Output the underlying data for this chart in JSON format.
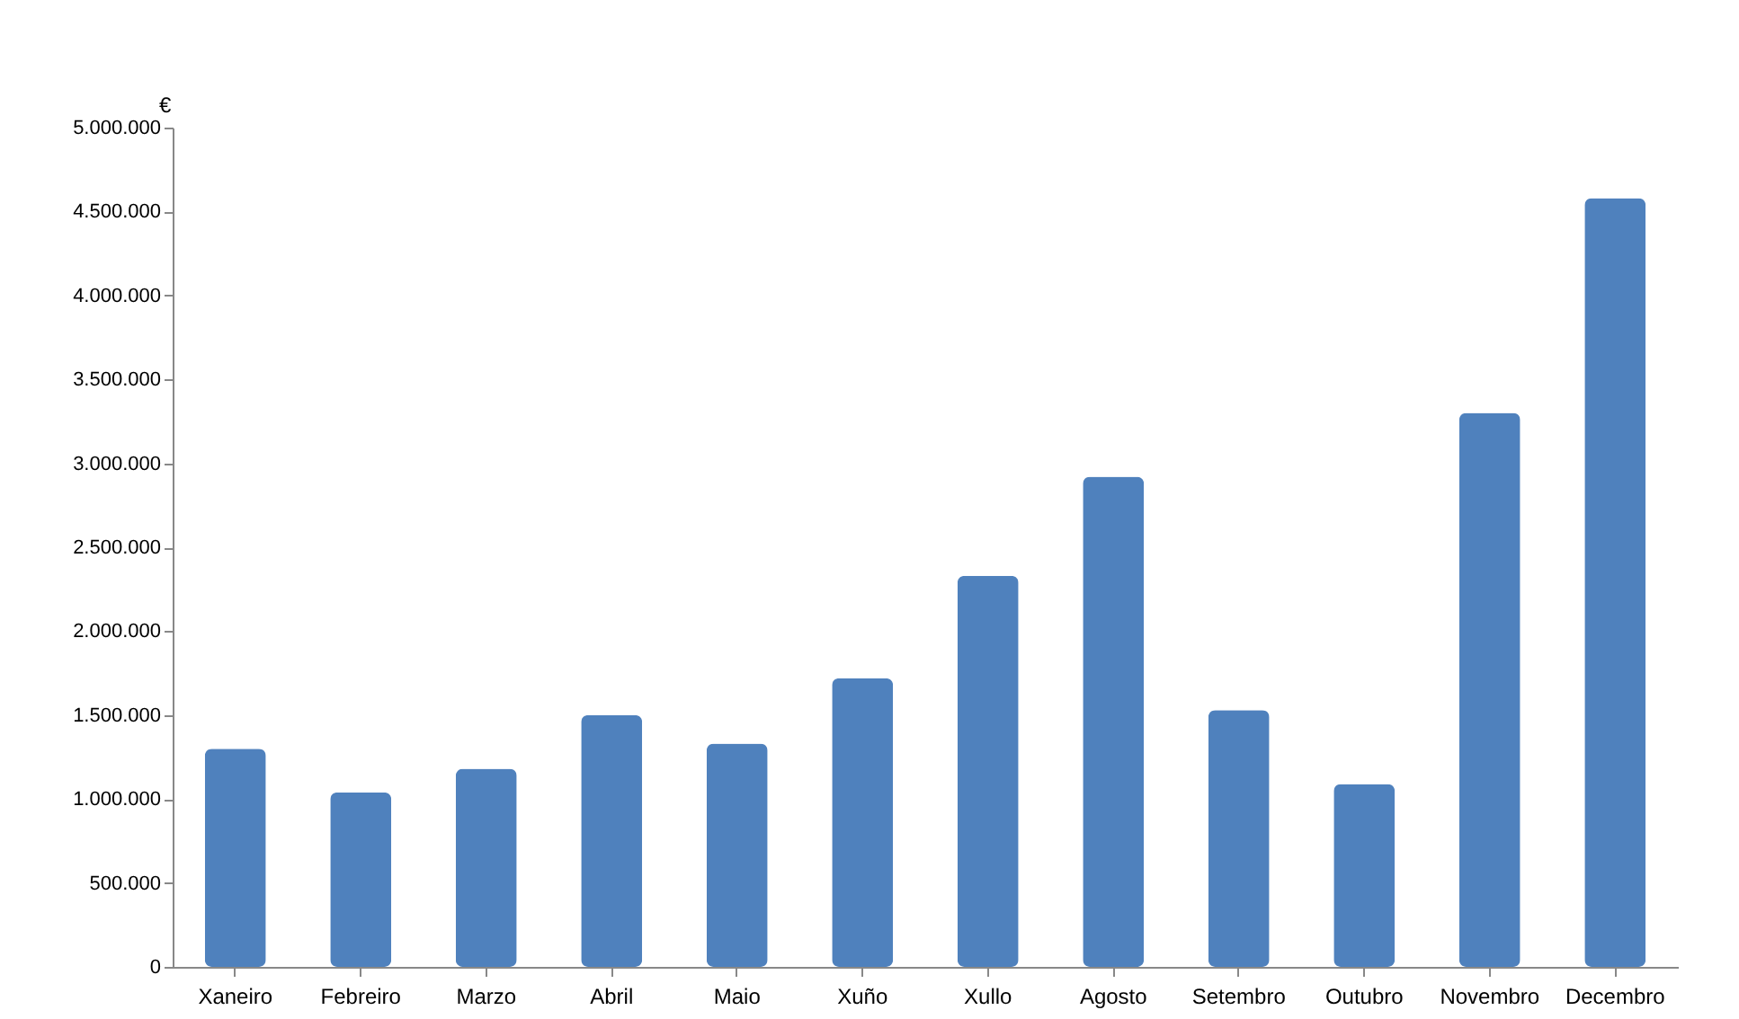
{
  "chart_data": {
    "type": "bar",
    "ylabel": "€",
    "categories": [
      "Xaneiro",
      "Febreiro",
      "Marzo",
      "Abril",
      "Maio",
      "Xuño",
      "Xullo",
      "Agosto",
      "Setembro",
      "Outubro",
      "Novembro",
      "Decembro"
    ],
    "values": [
      1300000,
      1040000,
      1180000,
      1500000,
      1330000,
      1720000,
      2330000,
      2920000,
      1530000,
      1090000,
      3300000,
      4580000
    ],
    "color": "#4f81bd",
    "ylim": [
      0,
      5000000
    ],
    "yticks": [
      {
        "value": 0,
        "label": "0"
      },
      {
        "value": 500000,
        "label": "500.000"
      },
      {
        "value": 1000000,
        "label": "1.000.000"
      },
      {
        "value": 1500000,
        "label": "1.500.000"
      },
      {
        "value": 2000000,
        "label": "2.000.000"
      },
      {
        "value": 2500000,
        "label": "2.500.000"
      },
      {
        "value": 3000000,
        "label": "3.000.000"
      },
      {
        "value": 3500000,
        "label": "3.500.000"
      },
      {
        "value": 4000000,
        "label": "4.000.000"
      },
      {
        "value": 4500000,
        "label": "4.500.000"
      },
      {
        "value": 5000000,
        "label": "5.000.000"
      }
    ],
    "grid": false
  }
}
